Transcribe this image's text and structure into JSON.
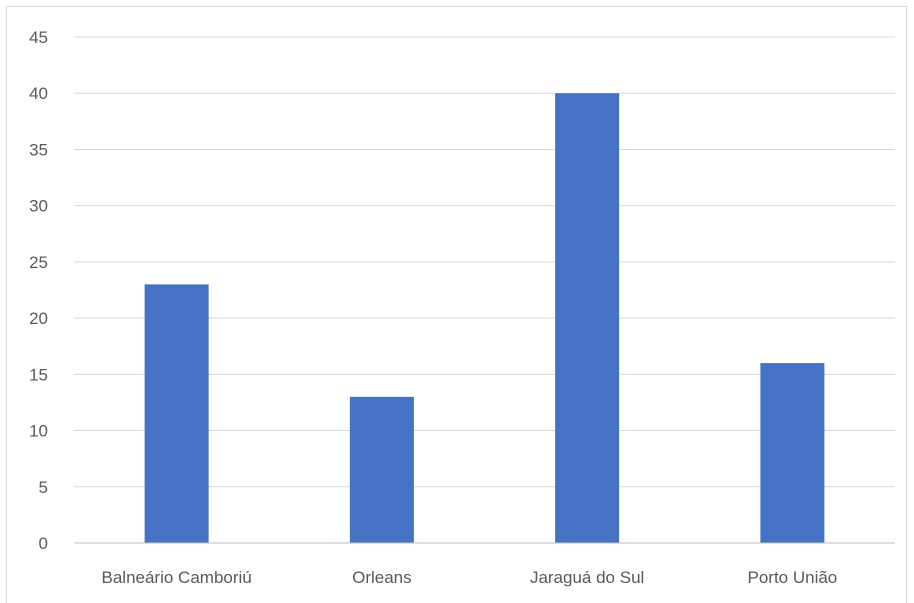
{
  "chart_data": {
    "type": "bar",
    "title": "",
    "xlabel": "",
    "ylabel": "",
    "categories": [
      "Balneário Camboriú",
      "Orleans",
      "Jaraguá do Sul",
      "Porto União"
    ],
    "values": [
      23,
      13,
      40,
      16
    ],
    "ylim": [
      0,
      45
    ],
    "yticks": [
      "0",
      "5",
      "10",
      "15",
      "20",
      "25",
      "30",
      "35",
      "40",
      "45"
    ],
    "grid": true,
    "legend": "none",
    "bar_color": "#4472c4",
    "grid_color": "#d9d9d9",
    "axis_color": "#bfbfbf",
    "text_color": "#595959"
  }
}
